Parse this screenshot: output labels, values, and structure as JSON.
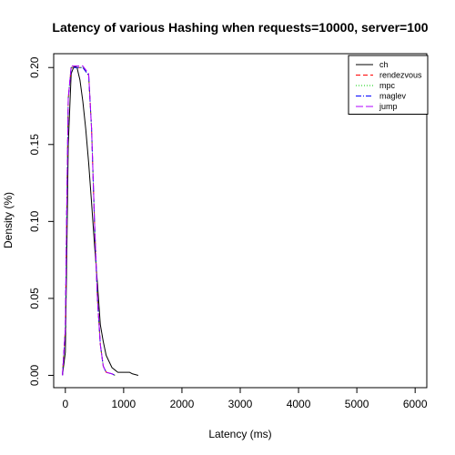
{
  "chart_data": {
    "type": "line",
    "title": "Latency of various Hashing when requests=10000, server=100",
    "xlabel": "Latency (ms)",
    "ylabel": "Density (%)",
    "xlim": [
      -200,
      6200
    ],
    "ylim": [
      -0.008,
      0.209
    ],
    "x_ticks": [
      0,
      1000,
      2000,
      3000,
      4000,
      5000,
      6000
    ],
    "y_ticks": [
      0.0,
      0.05,
      0.1,
      0.15,
      0.2
    ],
    "x_tick_labels": [
      "0",
      "1000",
      "2000",
      "3000",
      "4000",
      "5000",
      "6000"
    ],
    "y_tick_labels": [
      "0.00",
      "0.05",
      "0.10",
      "0.15",
      "0.20"
    ],
    "legend_position": "top-right",
    "series": [
      {
        "name": "ch",
        "color": "#000000",
        "dash": "",
        "x": [
          -50,
          0,
          25,
          50,
          100,
          150,
          200,
          250,
          300,
          350,
          400,
          450,
          500,
          550,
          600,
          650,
          700,
          800,
          900,
          1000,
          1100,
          1150,
          1250
        ],
        "y": [
          0.0,
          0.015,
          0.08,
          0.15,
          0.196,
          0.201,
          0.2,
          0.192,
          0.178,
          0.16,
          0.138,
          0.112,
          0.085,
          0.06,
          0.033,
          0.022,
          0.013,
          0.005,
          0.002,
          0.002,
          0.002,
          0.001,
          0.0
        ]
      },
      {
        "name": "rendezvous",
        "color": "#ff0000",
        "dash": "5,3",
        "x": [
          -50,
          0,
          25,
          50,
          100,
          200,
          300,
          400,
          450,
          500,
          550,
          600,
          650,
          700,
          800,
          850
        ],
        "y": [
          0.0,
          0.03,
          0.11,
          0.18,
          0.2,
          0.2,
          0.2,
          0.195,
          0.16,
          0.1,
          0.05,
          0.02,
          0.006,
          0.002,
          0.001,
          0.0
        ]
      },
      {
        "name": "mpc",
        "color": "#00cc00",
        "dash": "1,2",
        "x": [
          -50,
          0,
          25,
          50,
          100,
          200,
          300,
          400,
          450,
          500,
          550,
          600,
          650,
          700,
          800,
          850
        ],
        "y": [
          0.0,
          0.03,
          0.11,
          0.18,
          0.2,
          0.2,
          0.2,
          0.195,
          0.16,
          0.1,
          0.05,
          0.02,
          0.006,
          0.002,
          0.001,
          0.0
        ]
      },
      {
        "name": "maglev",
        "color": "#0000ff",
        "dash": "6,2,1,2",
        "x": [
          -50,
          0,
          25,
          50,
          100,
          200,
          300,
          400,
          450,
          500,
          550,
          600,
          650,
          700,
          800,
          850
        ],
        "y": [
          0.0,
          0.03,
          0.11,
          0.18,
          0.2,
          0.2,
          0.2,
          0.195,
          0.16,
          0.1,
          0.05,
          0.02,
          0.006,
          0.002,
          0.001,
          0.0
        ]
      },
      {
        "name": "jump",
        "color": "#b000ff",
        "dash": "8,3",
        "x": [
          -50,
          0,
          25,
          50,
          100,
          200,
          300,
          400,
          450,
          500,
          550,
          600,
          650,
          700,
          800,
          850
        ],
        "y": [
          0.0,
          0.03,
          0.11,
          0.18,
          0.201,
          0.201,
          0.201,
          0.196,
          0.16,
          0.1,
          0.05,
          0.02,
          0.006,
          0.002,
          0.001,
          0.0
        ]
      }
    ]
  }
}
